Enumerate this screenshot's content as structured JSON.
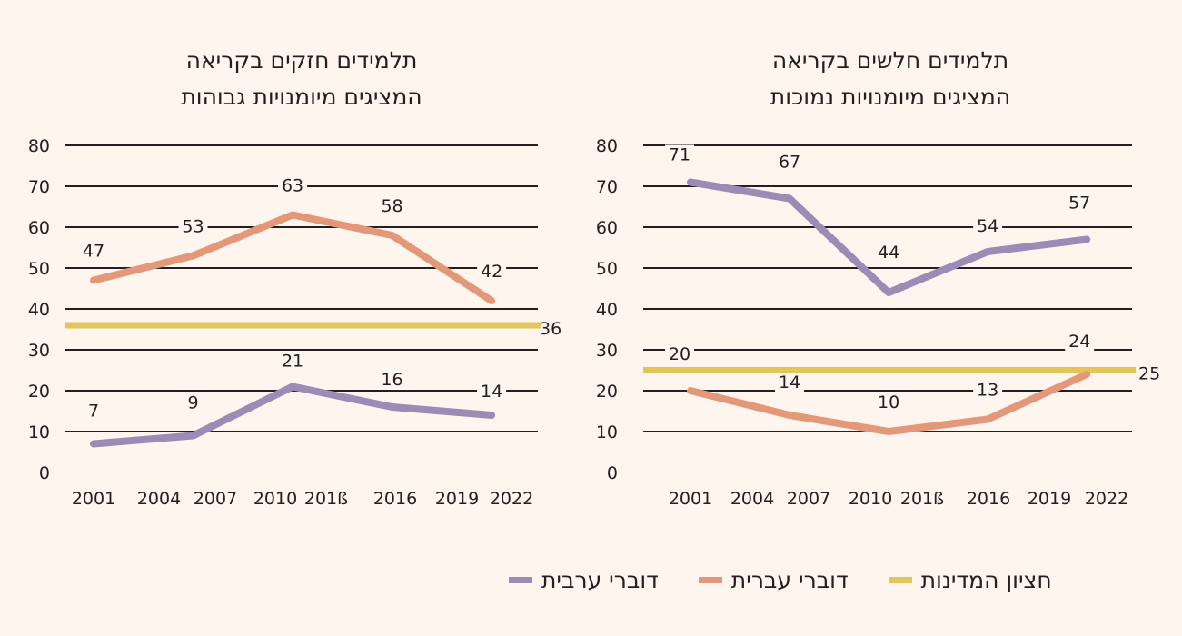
{
  "colors": {
    "arabic": "#9b8bb5",
    "hebrew": "#e4987a",
    "national": "#e3c65a",
    "grid": "#231f20"
  },
  "legend": [
    {
      "label": "דוברי ערבית",
      "color_key": "arabic"
    },
    {
      "label": "דוברי עברית",
      "color_key": "hebrew"
    },
    {
      "label": "חציון המדינות",
      "color_key": "national"
    }
  ],
  "chart_data": [
    {
      "type": "line",
      "title": [
        "תלמידים חזקים בקריאה",
        "המציגים מיומנויות גבוהות"
      ],
      "categories": [
        "2001",
        "2004",
        "2007",
        "2010",
        "201ß",
        "2016",
        "2019",
        "2022"
      ],
      "ylim": [
        0,
        80
      ],
      "yticks": [
        "0",
        "10",
        "20",
        "30",
        "40",
        "50",
        "60",
        "70",
        "80"
      ],
      "grid": true,
      "series": [
        {
          "key": "hebrew",
          "x": [
            "2001",
            "2006",
            "2011",
            "2016",
            "2021"
          ],
          "values": [
            47,
            53,
            63,
            58,
            42
          ],
          "labels": [
            "47",
            "53",
            "63",
            "58",
            "42"
          ]
        },
        {
          "key": "arabic",
          "x": [
            "2001",
            "2006",
            "2011",
            "2016",
            "2021"
          ],
          "values": [
            7,
            9,
            21,
            16,
            14
          ],
          "labels": [
            "7",
            "9",
            "21",
            "16",
            "14"
          ]
        }
      ],
      "reference": {
        "key": "national",
        "value": 36,
        "label": "36"
      }
    },
    {
      "type": "line",
      "title": [
        "תלמידים חלשים בקריאה",
        "המציגים מיומנויות נמוכות"
      ],
      "categories": [
        "2001",
        "2004",
        "2007",
        "2010",
        "201ß",
        "2016",
        "2019",
        "2022"
      ],
      "ylim": [
        0,
        80
      ],
      "yticks": [
        "0",
        "10",
        "20",
        "30",
        "40",
        "50",
        "60",
        "70",
        "80"
      ],
      "grid": true,
      "series": [
        {
          "key": "arabic",
          "x": [
            "2001",
            "2006",
            "2011",
            "2016",
            "2021"
          ],
          "values": [
            71,
            67,
            44,
            54,
            57
          ],
          "labels": [
            "71",
            "67",
            "44",
            "54",
            "57"
          ]
        },
        {
          "key": "hebrew",
          "x": [
            "2001",
            "2006",
            "2011",
            "2016",
            "2021"
          ],
          "values": [
            20,
            14,
            10,
            13,
            24
          ],
          "labels": [
            "20",
            "14",
            "10",
            "13",
            "24"
          ]
        }
      ],
      "reference": {
        "key": "national",
        "value": 25,
        "label": "25"
      }
    }
  ]
}
